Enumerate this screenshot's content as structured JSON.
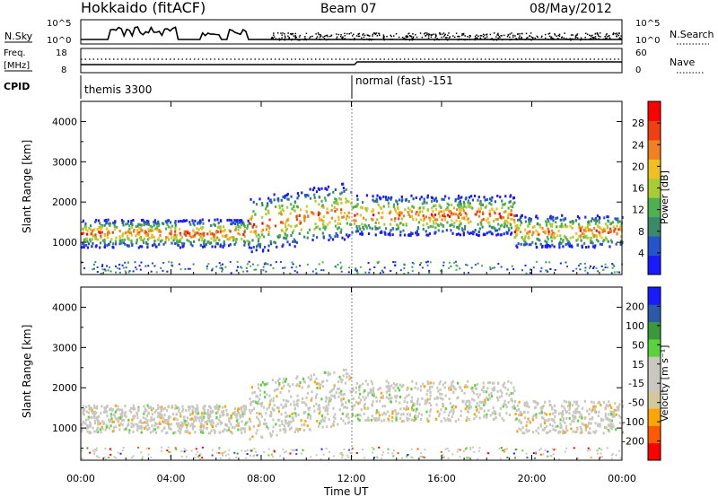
{
  "header": {
    "station": "Hokkaido (fitACF)",
    "beam": "Beam 07",
    "date": "08/May/2012"
  },
  "top_labels": {
    "nsky": "N.Sky",
    "freq_line1": "Freq.",
    "freq_line2": "[MHz]",
    "cpid": "CPID",
    "nsearch": "N.Search",
    "nave": "Nave",
    "nsky_ticks": [
      "10^5",
      "10^0"
    ],
    "nsearch_ticks": [
      "10^5",
      "10^0"
    ],
    "freq_ticks": [
      "18",
      "8"
    ],
    "nave_ticks": [
      "60",
      "0"
    ]
  },
  "cpid_modes": [
    "themis 3300",
    "normal (fast) -151"
  ],
  "colors": {
    "power_scale": [
      "#1a1aff",
      "#2255cc",
      "#3a8a6a",
      "#4fb04f",
      "#a8cc33",
      "#f0c020",
      "#f08020",
      "#f04010",
      "#ff0000"
    ],
    "velocity_scale": [
      "#ff0000",
      "#ff5a00",
      "#ffa500",
      "#d2c89a",
      "#c8c8c0",
      "#c8c8c0",
      "#5ad23c",
      "#3a9a3a",
      "#2a5aa8",
      "#1a1aff"
    ],
    "ground_scatter": "#c8c8c0"
  },
  "chart_data": [
    {
      "type": "heatmap",
      "title": "",
      "xlabel": "",
      "ylabel": "Slant Range [km]",
      "x_ticks": [
        "00:00",
        "04:00",
        "08:00",
        "12:00",
        "16:00",
        "20:00",
        "00:00"
      ],
      "y_ticks": [
        "1000",
        "2000",
        "3000",
        "4000"
      ],
      "ylim": [
        200,
        4500
      ],
      "colorbar_label": "Power [dB]",
      "colorbar_ticks": [
        "28",
        "24",
        "20",
        "16",
        "12",
        "8",
        "4"
      ],
      "clim": [
        0,
        32
      ]
    },
    {
      "type": "heatmap",
      "title": "",
      "xlabel": "Time UT",
      "ylabel": "Slant Range [km]",
      "x_ticks": [
        "00:00",
        "04:00",
        "08:00",
        "12:00",
        "16:00",
        "20:00",
        "00:00"
      ],
      "y_ticks": [
        "1000",
        "2000",
        "3000",
        "4000"
      ],
      "ylim": [
        200,
        4500
      ],
      "colorbar_label": "Velocity [m s⁻¹]",
      "colorbar_ticks": [
        "200",
        "100",
        "50",
        "15",
        "-15",
        "-50",
        "-100",
        "-200"
      ],
      "clim": [
        -250,
        250
      ]
    }
  ]
}
